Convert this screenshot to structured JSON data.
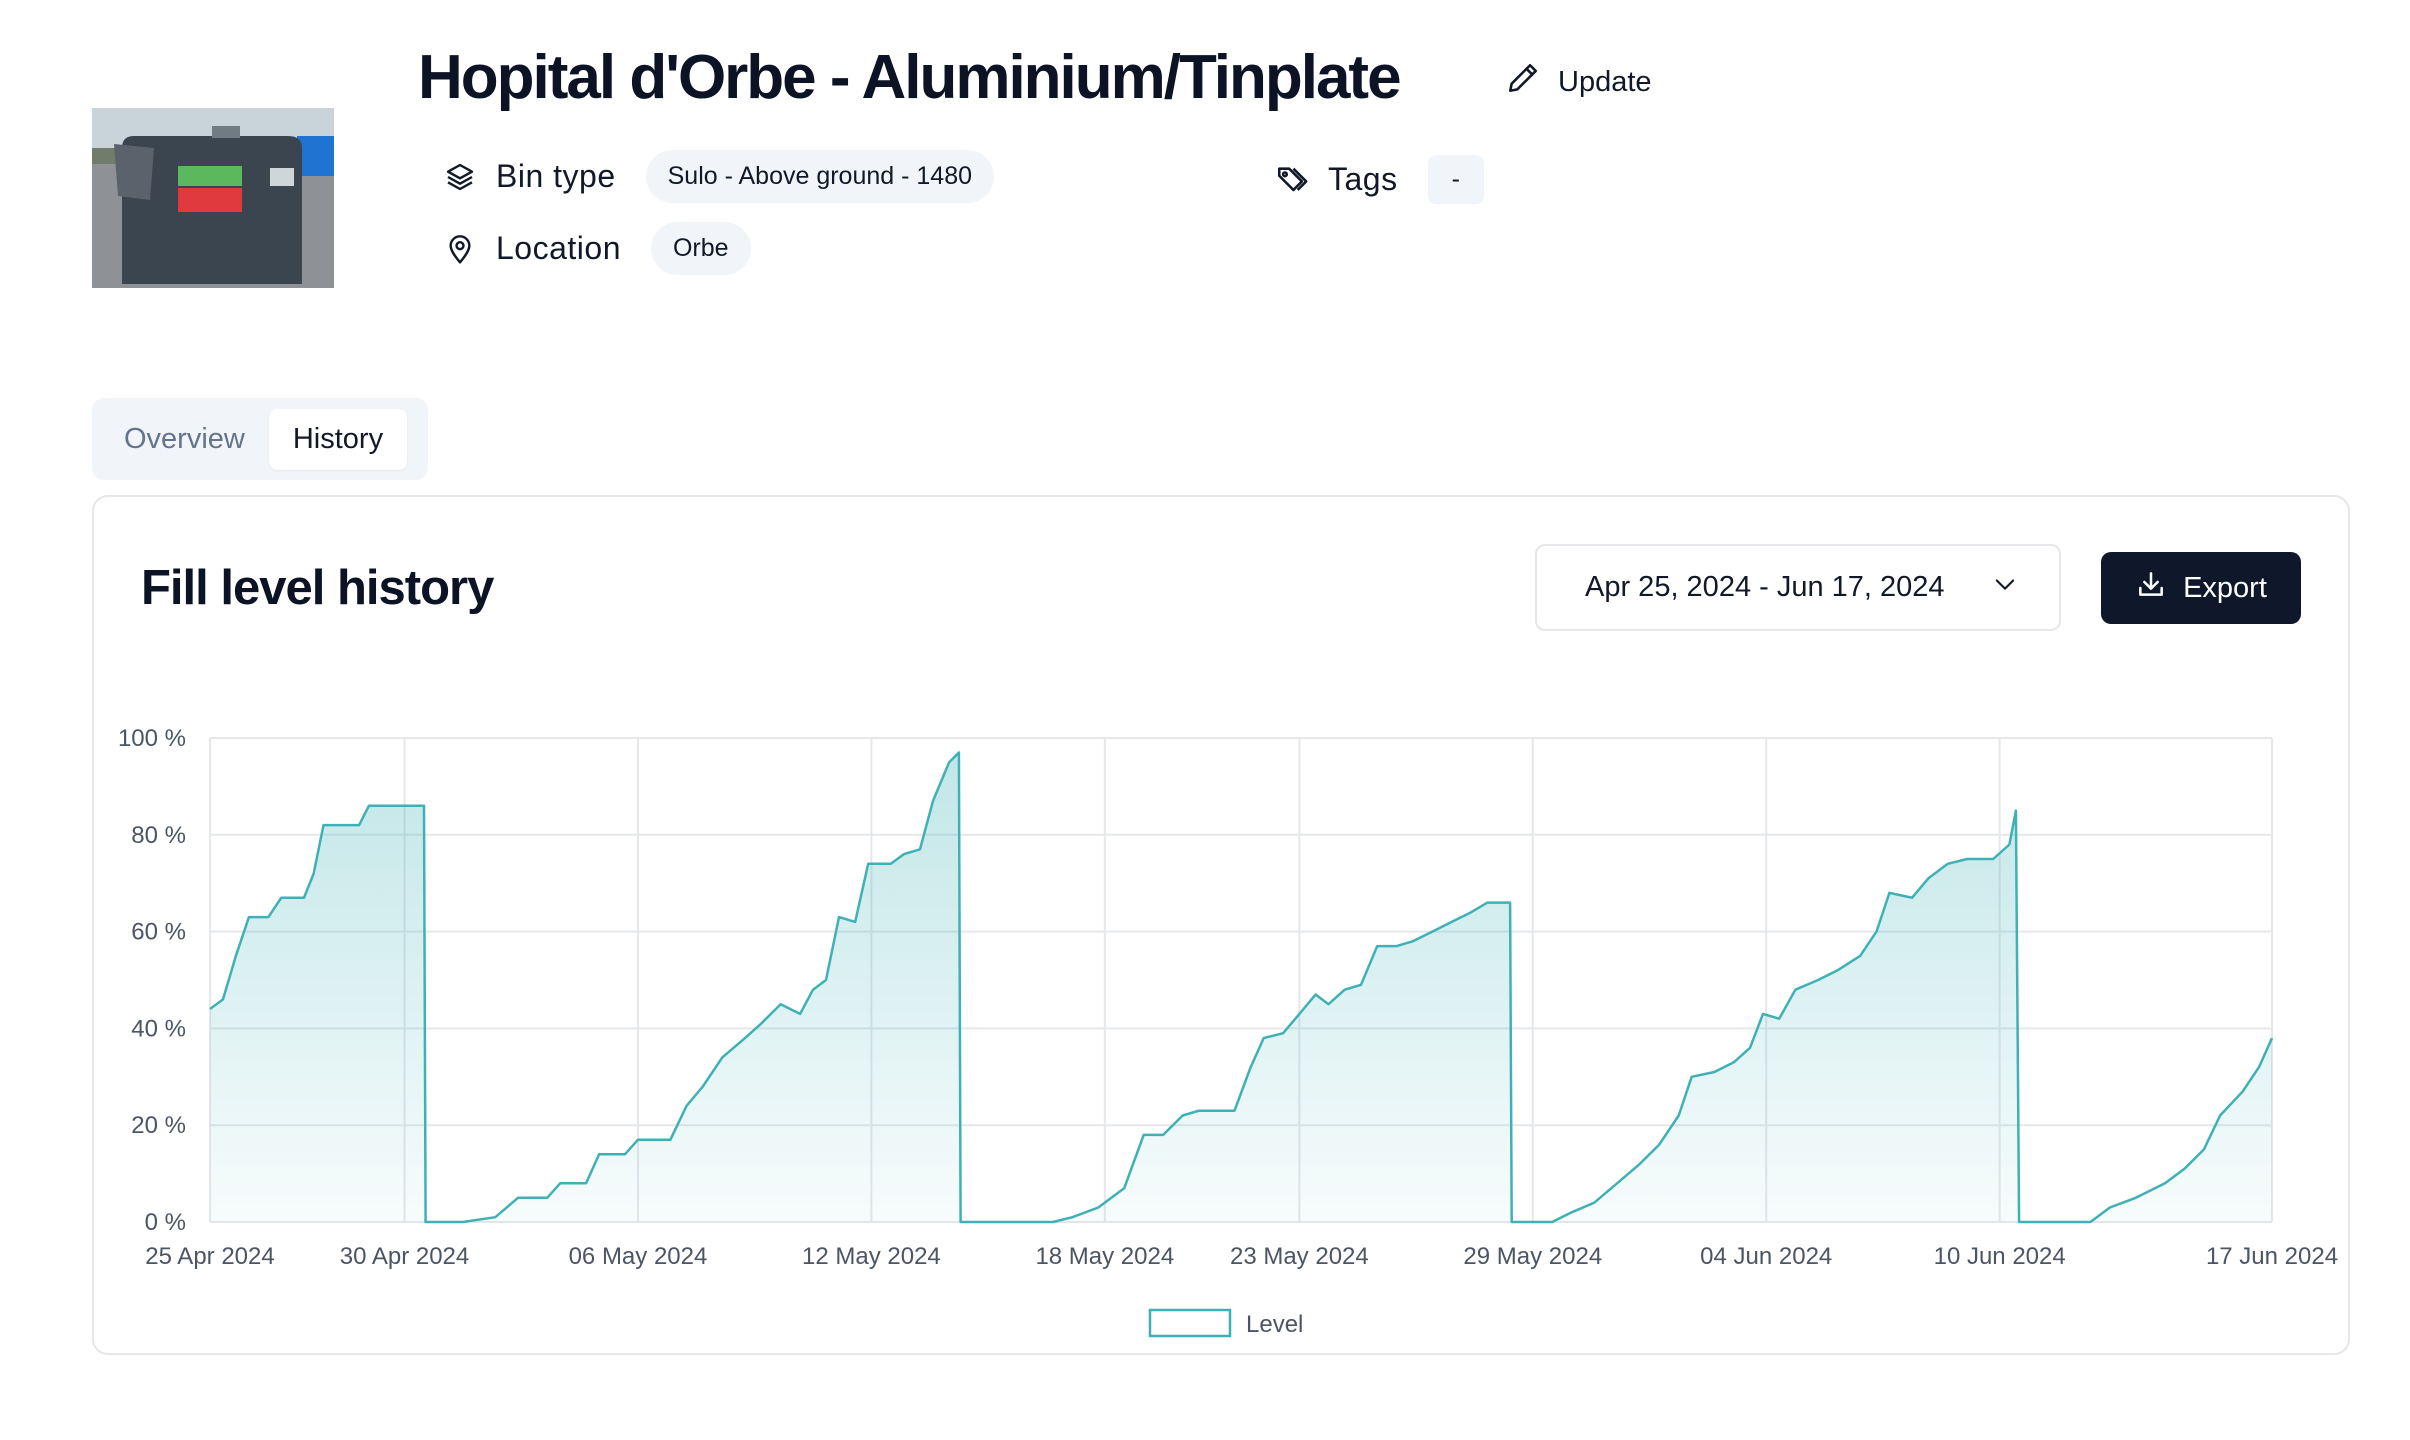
{
  "header": {
    "title": "Hopital d'Orbe - Aluminium/Tinplate",
    "update_label": "Update",
    "bin_type_label": "Bin type",
    "bin_type_value": "Sulo - Above ground - 1480",
    "location_label": "Location",
    "location_value": "Orbe",
    "tags_label": "Tags",
    "tags_value": "-"
  },
  "tabs": [
    {
      "label": "Overview",
      "active": false
    },
    {
      "label": "History",
      "active": true
    }
  ],
  "card": {
    "title": "Fill level history",
    "date_range": "Apr 25, 2024 - Jun 17, 2024",
    "export_label": "Export"
  },
  "colors": {
    "accent_line": "#3fb1b6",
    "button_dark": "#0f172a",
    "pill_bg": "#f1f5f9"
  },
  "icons": {
    "update": "pencil-icon",
    "bin_type": "layers-icon",
    "location": "map-pin-icon",
    "tags": "tag-icon",
    "date_picker": "chevron-down-icon",
    "export": "download-icon"
  },
  "chart_data": {
    "type": "area",
    "title": "",
    "xlabel": "",
    "ylabel": "",
    "ylim": [
      0,
      100
    ],
    "y_unit": "%",
    "yticks": [
      "0 %",
      "20 %",
      "40 %",
      "60 %",
      "80 %",
      "100 %"
    ],
    "x_range": [
      "2024-04-25",
      "2024-06-17"
    ],
    "xticks": [
      {
        "date": "2024-04-25",
        "label": "25 Apr 2024"
      },
      {
        "date": "2024-04-30",
        "label": "30 Apr 2024"
      },
      {
        "date": "2024-05-06",
        "label": "06 May 2024"
      },
      {
        "date": "2024-05-12",
        "label": "12 May 2024"
      },
      {
        "date": "2024-05-18",
        "label": "18 May 2024"
      },
      {
        "date": "2024-05-23",
        "label": "23 May 2024"
      },
      {
        "date": "2024-05-29",
        "label": "29 May 2024"
      },
      {
        "date": "2024-06-04",
        "label": "04 Jun 2024"
      },
      {
        "date": "2024-06-10",
        "label": "10 Jun 2024"
      },
      {
        "date": "2024-06-17",
        "label": "17 Jun 2024"
      }
    ],
    "grid": true,
    "legend_position": "bottom-center",
    "series": [
      {
        "name": "Level",
        "points": [
          [
            "2024-04-25 00:00",
            44
          ],
          [
            "2024-04-25 08:00",
            46
          ],
          [
            "2024-04-25 16:00",
            55
          ],
          [
            "2024-04-26 00:00",
            63
          ],
          [
            "2024-04-26 12:00",
            63
          ],
          [
            "2024-04-26 20:00",
            67
          ],
          [
            "2024-04-27 10:00",
            67
          ],
          [
            "2024-04-27 16:00",
            72
          ],
          [
            "2024-04-27 22:00",
            82
          ],
          [
            "2024-04-28 20:00",
            82
          ],
          [
            "2024-04-29 02:00",
            86
          ],
          [
            "2024-04-30 12:00",
            86
          ],
          [
            "2024-04-30 13:00",
            0
          ],
          [
            "2024-05-01 12:00",
            0
          ],
          [
            "2024-05-02 08:00",
            1
          ],
          [
            "2024-05-02 22:00",
            5
          ],
          [
            "2024-05-03 16:00",
            5
          ],
          [
            "2024-05-04 00:00",
            8
          ],
          [
            "2024-05-04 16:00",
            8
          ],
          [
            "2024-05-05 00:00",
            14
          ],
          [
            "2024-05-05 16:00",
            14
          ],
          [
            "2024-05-06 00:00",
            17
          ],
          [
            "2024-05-06 20:00",
            17
          ],
          [
            "2024-05-07 06:00",
            24
          ],
          [
            "2024-05-07 16:00",
            28
          ],
          [
            "2024-05-08 04:00",
            34
          ],
          [
            "2024-05-08 18:00",
            38
          ],
          [
            "2024-05-09 04:00",
            41
          ],
          [
            "2024-05-09 16:00",
            45
          ],
          [
            "2024-05-10 04:00",
            43
          ],
          [
            "2024-05-10 12:00",
            48
          ],
          [
            "2024-05-10 20:00",
            50
          ],
          [
            "2024-05-11 04:00",
            63
          ],
          [
            "2024-05-11 14:00",
            62
          ],
          [
            "2024-05-11 22:00",
            74
          ],
          [
            "2024-05-12 12:00",
            74
          ],
          [
            "2024-05-12 20:00",
            76
          ],
          [
            "2024-05-13 06:00",
            77
          ],
          [
            "2024-05-13 14:00",
            87
          ],
          [
            "2024-05-14 00:00",
            95
          ],
          [
            "2024-05-14 06:00",
            97
          ],
          [
            "2024-05-14 07:00",
            0
          ],
          [
            "2024-05-16 16:00",
            0
          ],
          [
            "2024-05-17 04:00",
            1
          ],
          [
            "2024-05-17 20:00",
            3
          ],
          [
            "2024-05-18 12:00",
            7
          ],
          [
            "2024-05-19 00:00",
            18
          ],
          [
            "2024-05-19 12:00",
            18
          ],
          [
            "2024-05-20 00:00",
            22
          ],
          [
            "2024-05-20 10:00",
            23
          ],
          [
            "2024-05-21 08:00",
            23
          ],
          [
            "2024-05-21 18:00",
            32
          ],
          [
            "2024-05-22 02:00",
            38
          ],
          [
            "2024-05-22 14:00",
            39
          ],
          [
            "2024-05-23 00:00",
            43
          ],
          [
            "2024-05-23 10:00",
            47
          ],
          [
            "2024-05-23 18:00",
            45
          ],
          [
            "2024-05-24 04:00",
            48
          ],
          [
            "2024-05-24 14:00",
            49
          ],
          [
            "2024-05-25 00:00",
            57
          ],
          [
            "2024-05-25 12:00",
            57
          ],
          [
            "2024-05-25 22:00",
            58
          ],
          [
            "2024-05-26 10:00",
            60
          ],
          [
            "2024-05-26 22:00",
            62
          ],
          [
            "2024-05-27 10:00",
            64
          ],
          [
            "2024-05-27 20:00",
            66
          ],
          [
            "2024-05-28 10:00",
            66
          ],
          [
            "2024-05-28 11:00",
            0
          ],
          [
            "2024-05-29 12:00",
            0
          ],
          [
            "2024-05-30 00:00",
            2
          ],
          [
            "2024-05-30 14:00",
            4
          ],
          [
            "2024-05-31 04:00",
            8
          ],
          [
            "2024-05-31 18:00",
            12
          ],
          [
            "2024-06-01 06:00",
            16
          ],
          [
            "2024-06-01 18:00",
            22
          ],
          [
            "2024-06-02 02:00",
            30
          ],
          [
            "2024-06-02 16:00",
            31
          ],
          [
            "2024-06-03 04:00",
            33
          ],
          [
            "2024-06-03 14:00",
            36
          ],
          [
            "2024-06-03 22:00",
            43
          ],
          [
            "2024-06-04 08:00",
            42
          ],
          [
            "2024-06-04 18:00",
            48
          ],
          [
            "2024-06-05 08:00",
            50
          ],
          [
            "2024-06-05 20:00",
            52
          ],
          [
            "2024-06-06 10:00",
            55
          ],
          [
            "2024-06-06 20:00",
            60
          ],
          [
            "2024-06-07 04:00",
            68
          ],
          [
            "2024-06-07 18:00",
            67
          ],
          [
            "2024-06-08 04:00",
            71
          ],
          [
            "2024-06-08 16:00",
            74
          ],
          [
            "2024-06-09 04:00",
            75
          ],
          [
            "2024-06-09 20:00",
            75
          ],
          [
            "2024-06-10 06:00",
            78
          ],
          [
            "2024-06-10 10:00",
            85
          ],
          [
            "2024-06-10 12:00",
            0
          ],
          [
            "2024-06-12 08:00",
            0
          ],
          [
            "2024-06-12 20:00",
            3
          ],
          [
            "2024-06-13 12:00",
            5
          ],
          [
            "2024-06-14 06:00",
            8
          ],
          [
            "2024-06-14 18:00",
            11
          ],
          [
            "2024-06-15 06:00",
            15
          ],
          [
            "2024-06-15 16:00",
            22
          ],
          [
            "2024-06-16 06:00",
            27
          ],
          [
            "2024-06-16 16:00",
            32
          ],
          [
            "2024-06-17 00:00",
            38
          ]
        ]
      }
    ]
  }
}
